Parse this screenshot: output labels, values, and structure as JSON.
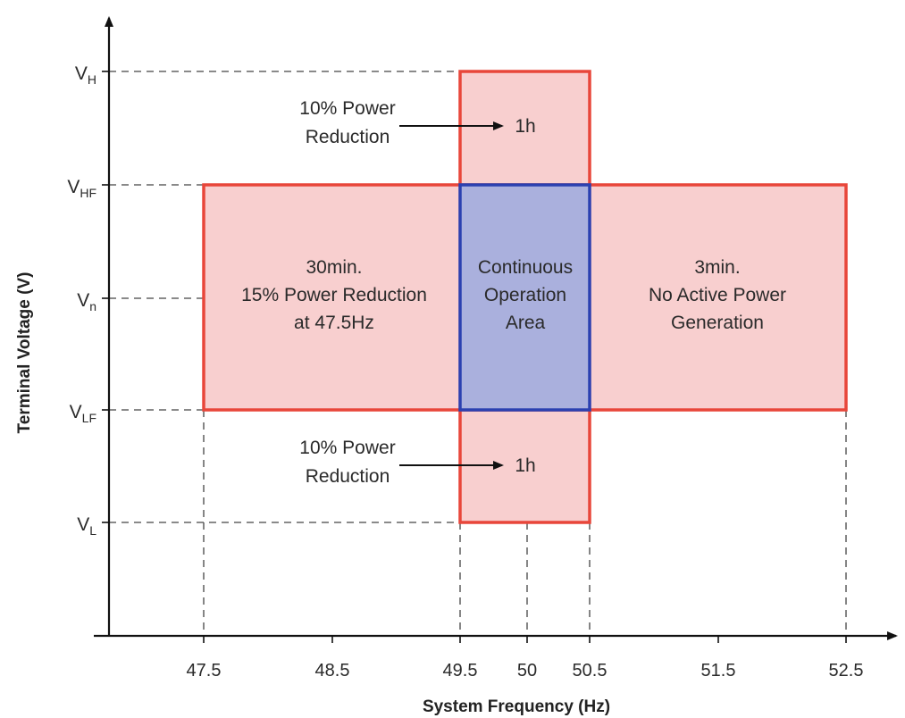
{
  "diagram": {
    "x_axis_title": "System Frequency (Hz)",
    "y_axis_title": "Terminal Voltage (V)",
    "x_ticks": [
      "47.5",
      "48.5",
      "49.5",
      "50",
      "50.5",
      "51.5",
      "52.5"
    ],
    "y_levels": [
      {
        "main": "V",
        "sub": "H"
      },
      {
        "main": "V",
        "sub": "HF"
      },
      {
        "main": "V",
        "sub": "n"
      },
      {
        "main": "V",
        "sub": "LF"
      },
      {
        "main": "V",
        "sub": "L"
      }
    ],
    "regions": {
      "top": {
        "line1": "10% Power",
        "line2": "Reduction",
        "duration": "1h"
      },
      "bottom": {
        "line1": "10% Power",
        "line2": "Reduction",
        "duration": "1h"
      },
      "left": {
        "line1": "30min.",
        "line2": "15% Power Reduction",
        "line3": "at 47.5Hz"
      },
      "center": {
        "line1": "Continuous",
        "line2": "Operation",
        "line3": "Area"
      },
      "right": {
        "line1": "3min.",
        "line2": "No Active Power",
        "line3": "Generation"
      }
    },
    "colors": {
      "limited_region_fill": "#f7c7c7",
      "limited_region_border": "#e8463a",
      "continuous_region_fill": "#aab0dd",
      "continuous_region_border": "#2b40b0"
    }
  }
}
